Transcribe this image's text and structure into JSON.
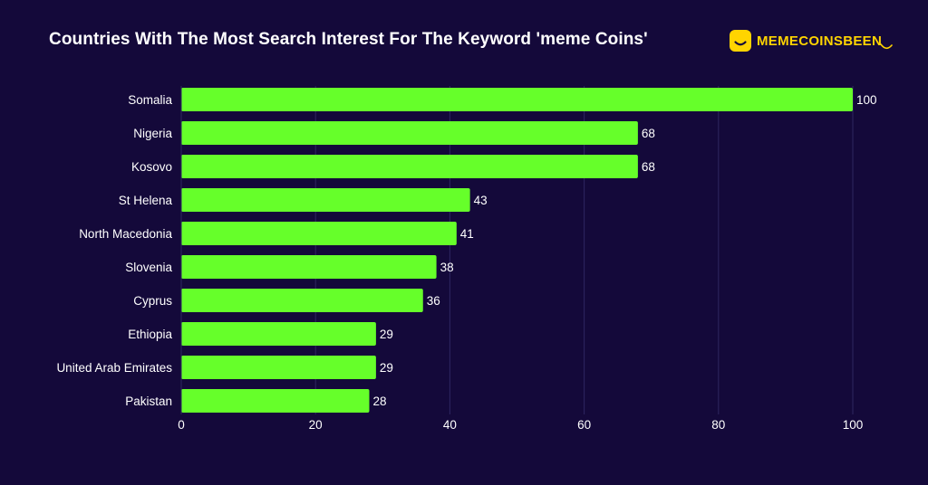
{
  "header": {
    "title": "Countries With The Most Search Interest For The Keyword 'meme Coins'",
    "brand": "MEMECOINSBEEN"
  },
  "colors": {
    "background": "#14093a",
    "bar": "#66ff2a",
    "text": "#ffffff",
    "brand": "#ffd400",
    "grid": "#2e2660"
  },
  "icons": {
    "brand_logo": "smiley-face-icon"
  },
  "chart_data": {
    "type": "bar",
    "orientation": "horizontal",
    "title": "Countries With The Most Search Interest For The Keyword 'meme Coins'",
    "categories": [
      "Somalia",
      "Nigeria",
      "Kosovo",
      "St Helena",
      "North Macedonia",
      "Slovenia",
      "Cyprus",
      "Ethiopia",
      "United Arab Emirates",
      "Pakistan"
    ],
    "values": [
      100,
      68,
      68,
      43,
      41,
      38,
      36,
      29,
      29,
      28
    ],
    "xlim": [
      0,
      100
    ],
    "xticks": [
      0,
      20,
      40,
      60,
      80,
      100
    ],
    "xlabel": "",
    "ylabel": "",
    "grid": true,
    "data_labels": true
  }
}
